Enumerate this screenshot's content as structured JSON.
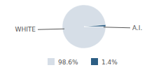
{
  "chart_data": {
    "type": "pie",
    "categories": [
      "WHITE",
      "A.I."
    ],
    "values": [
      98.6,
      1.4
    ],
    "value_labels": [
      "98.6%",
      "1.4%"
    ],
    "colors": [
      "#d6dee7",
      "#2c5e84"
    ],
    "legend": "bottom"
  }
}
